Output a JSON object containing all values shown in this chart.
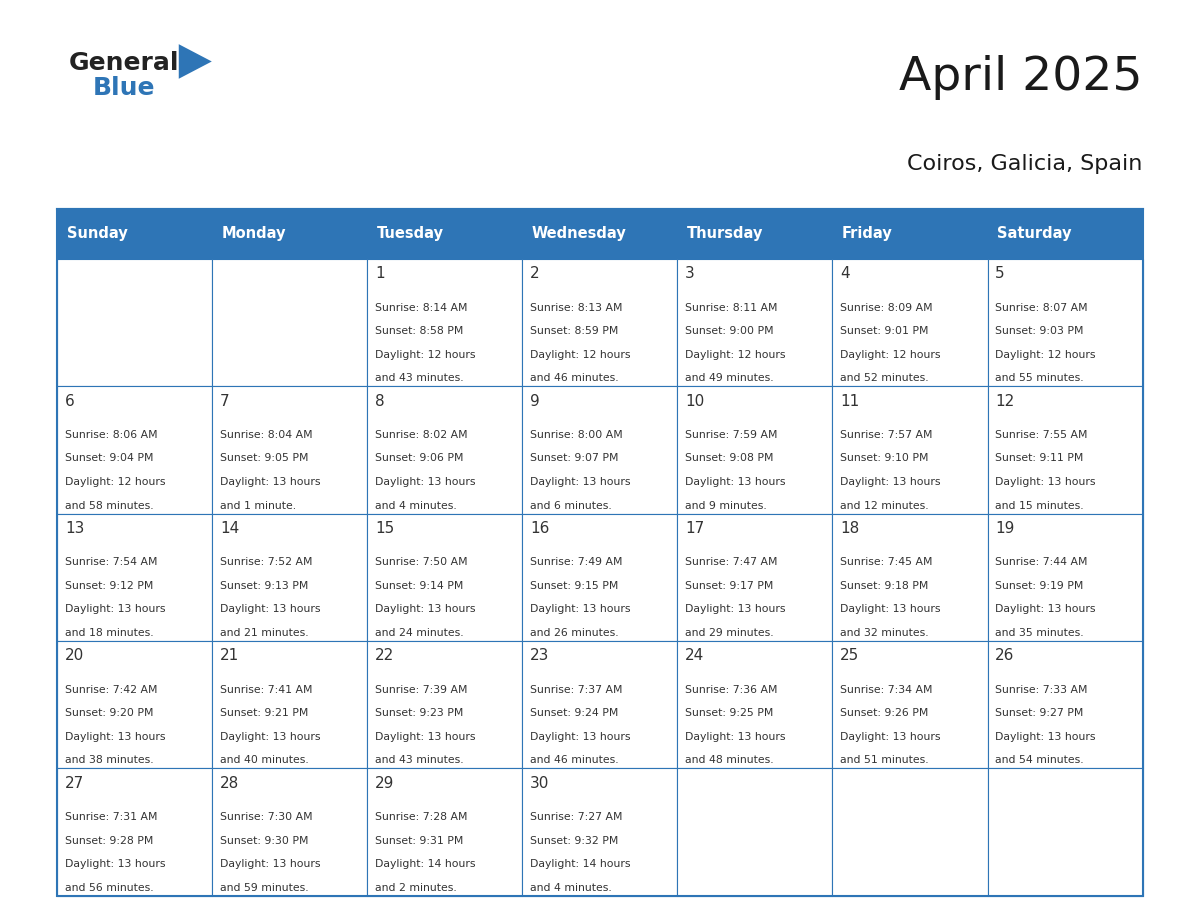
{
  "title": "April 2025",
  "subtitle": "Coiros, Galicia, Spain",
  "header_bg": "#2E75B6",
  "header_text_color": "#FFFFFF",
  "grid_line_color": "#2E75B6",
  "text_color": "#333333",
  "day_number_color": "#333333",
  "weekdays": [
    "Sunday",
    "Monday",
    "Tuesday",
    "Wednesday",
    "Thursday",
    "Friday",
    "Saturday"
  ],
  "logo_general_color": "#222222",
  "logo_blue_color": "#2E75B6",
  "calendar": [
    [
      {
        "day": "",
        "info": ""
      },
      {
        "day": "",
        "info": ""
      },
      {
        "day": "1",
        "info": "Sunrise: 8:14 AM\nSunset: 8:58 PM\nDaylight: 12 hours\nand 43 minutes."
      },
      {
        "day": "2",
        "info": "Sunrise: 8:13 AM\nSunset: 8:59 PM\nDaylight: 12 hours\nand 46 minutes."
      },
      {
        "day": "3",
        "info": "Sunrise: 8:11 AM\nSunset: 9:00 PM\nDaylight: 12 hours\nand 49 minutes."
      },
      {
        "day": "4",
        "info": "Sunrise: 8:09 AM\nSunset: 9:01 PM\nDaylight: 12 hours\nand 52 minutes."
      },
      {
        "day": "5",
        "info": "Sunrise: 8:07 AM\nSunset: 9:03 PM\nDaylight: 12 hours\nand 55 minutes."
      }
    ],
    [
      {
        "day": "6",
        "info": "Sunrise: 8:06 AM\nSunset: 9:04 PM\nDaylight: 12 hours\nand 58 minutes."
      },
      {
        "day": "7",
        "info": "Sunrise: 8:04 AM\nSunset: 9:05 PM\nDaylight: 13 hours\nand 1 minute."
      },
      {
        "day": "8",
        "info": "Sunrise: 8:02 AM\nSunset: 9:06 PM\nDaylight: 13 hours\nand 4 minutes."
      },
      {
        "day": "9",
        "info": "Sunrise: 8:00 AM\nSunset: 9:07 PM\nDaylight: 13 hours\nand 6 minutes."
      },
      {
        "day": "10",
        "info": "Sunrise: 7:59 AM\nSunset: 9:08 PM\nDaylight: 13 hours\nand 9 minutes."
      },
      {
        "day": "11",
        "info": "Sunrise: 7:57 AM\nSunset: 9:10 PM\nDaylight: 13 hours\nand 12 minutes."
      },
      {
        "day": "12",
        "info": "Sunrise: 7:55 AM\nSunset: 9:11 PM\nDaylight: 13 hours\nand 15 minutes."
      }
    ],
    [
      {
        "day": "13",
        "info": "Sunrise: 7:54 AM\nSunset: 9:12 PM\nDaylight: 13 hours\nand 18 minutes."
      },
      {
        "day": "14",
        "info": "Sunrise: 7:52 AM\nSunset: 9:13 PM\nDaylight: 13 hours\nand 21 minutes."
      },
      {
        "day": "15",
        "info": "Sunrise: 7:50 AM\nSunset: 9:14 PM\nDaylight: 13 hours\nand 24 minutes."
      },
      {
        "day": "16",
        "info": "Sunrise: 7:49 AM\nSunset: 9:15 PM\nDaylight: 13 hours\nand 26 minutes."
      },
      {
        "day": "17",
        "info": "Sunrise: 7:47 AM\nSunset: 9:17 PM\nDaylight: 13 hours\nand 29 minutes."
      },
      {
        "day": "18",
        "info": "Sunrise: 7:45 AM\nSunset: 9:18 PM\nDaylight: 13 hours\nand 32 minutes."
      },
      {
        "day": "19",
        "info": "Sunrise: 7:44 AM\nSunset: 9:19 PM\nDaylight: 13 hours\nand 35 minutes."
      }
    ],
    [
      {
        "day": "20",
        "info": "Sunrise: 7:42 AM\nSunset: 9:20 PM\nDaylight: 13 hours\nand 38 minutes."
      },
      {
        "day": "21",
        "info": "Sunrise: 7:41 AM\nSunset: 9:21 PM\nDaylight: 13 hours\nand 40 minutes."
      },
      {
        "day": "22",
        "info": "Sunrise: 7:39 AM\nSunset: 9:23 PM\nDaylight: 13 hours\nand 43 minutes."
      },
      {
        "day": "23",
        "info": "Sunrise: 7:37 AM\nSunset: 9:24 PM\nDaylight: 13 hours\nand 46 minutes."
      },
      {
        "day": "24",
        "info": "Sunrise: 7:36 AM\nSunset: 9:25 PM\nDaylight: 13 hours\nand 48 minutes."
      },
      {
        "day": "25",
        "info": "Sunrise: 7:34 AM\nSunset: 9:26 PM\nDaylight: 13 hours\nand 51 minutes."
      },
      {
        "day": "26",
        "info": "Sunrise: 7:33 AM\nSunset: 9:27 PM\nDaylight: 13 hours\nand 54 minutes."
      }
    ],
    [
      {
        "day": "27",
        "info": "Sunrise: 7:31 AM\nSunset: 9:28 PM\nDaylight: 13 hours\nand 56 minutes."
      },
      {
        "day": "28",
        "info": "Sunrise: 7:30 AM\nSunset: 9:30 PM\nDaylight: 13 hours\nand 59 minutes."
      },
      {
        "day": "29",
        "info": "Sunrise: 7:28 AM\nSunset: 9:31 PM\nDaylight: 14 hours\nand 2 minutes."
      },
      {
        "day": "30",
        "info": "Sunrise: 7:27 AM\nSunset: 9:32 PM\nDaylight: 14 hours\nand 4 minutes."
      },
      {
        "day": "",
        "info": ""
      },
      {
        "day": "",
        "info": ""
      },
      {
        "day": "",
        "info": ""
      }
    ]
  ]
}
